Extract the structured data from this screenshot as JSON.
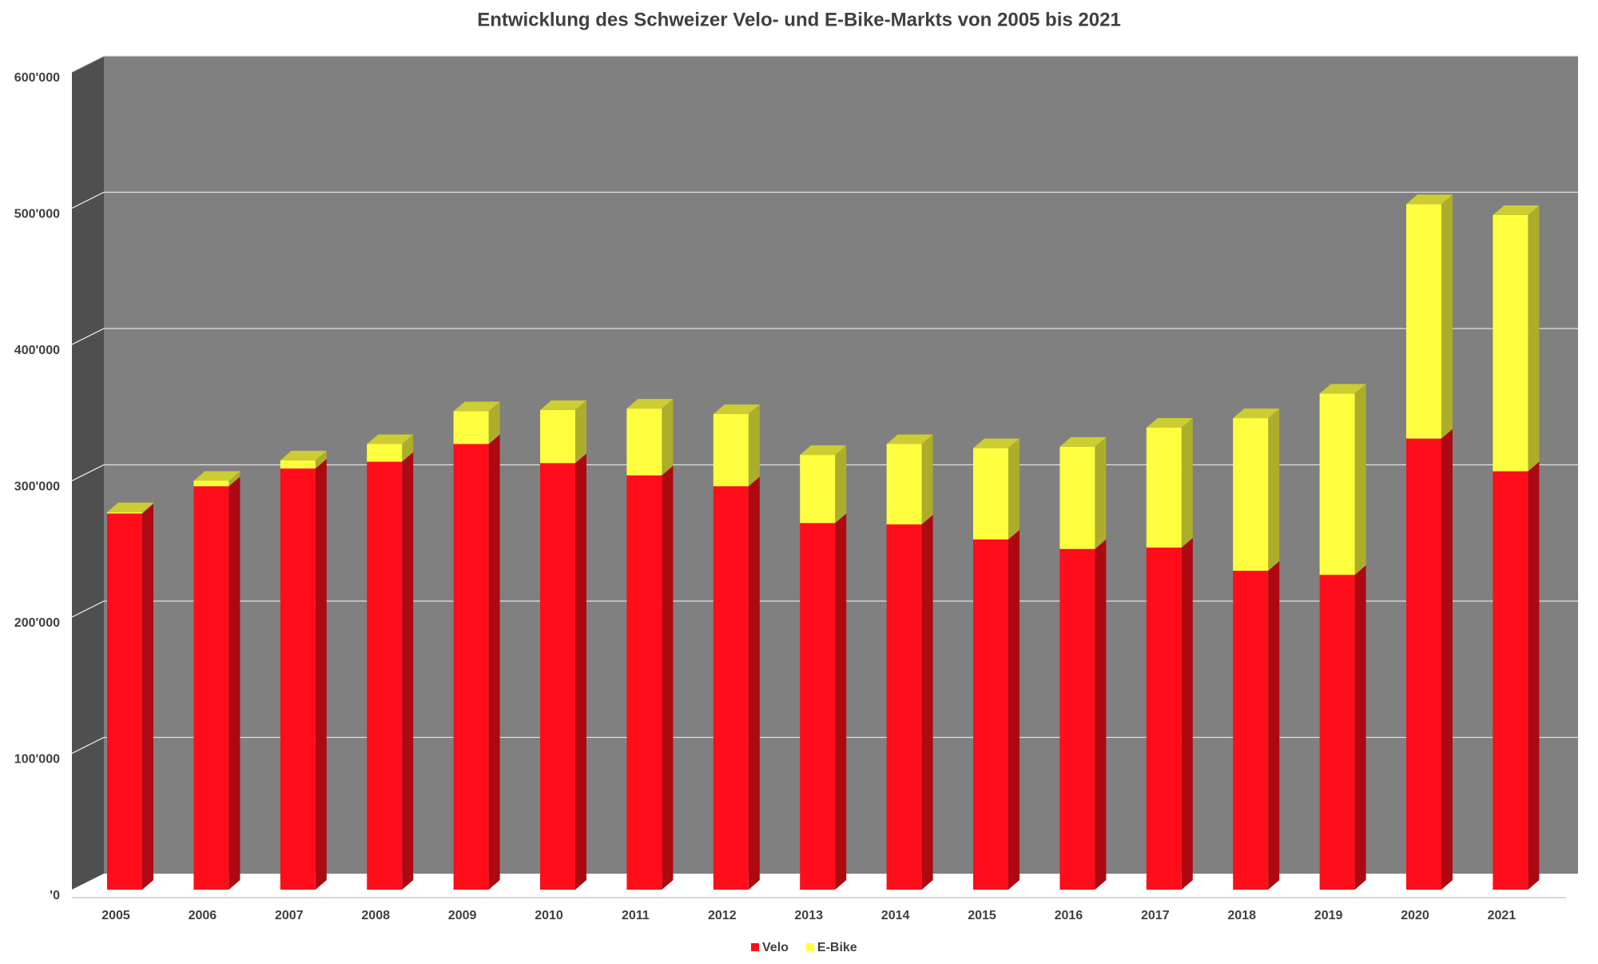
{
  "chart_data": {
    "type": "bar3d_stacked",
    "title": "Entwicklung des Schweizer Velo- und E-Bike-Markts von 2005 bis 2021",
    "categories": [
      "2005",
      "2006",
      "2007",
      "2008",
      "2009",
      "2010",
      "2011",
      "2012",
      "2013",
      "2014",
      "2015",
      "2016",
      "2017",
      "2018",
      "2019",
      "2020",
      "2021"
    ],
    "series": [
      {
        "name": "Velo",
        "color": "#ff0d1a",
        "values": [
          276000,
          296000,
          309000,
          314000,
          327000,
          313000,
          304000,
          296000,
          269000,
          268000,
          257000,
          250000,
          251000,
          234000,
          231000,
          331000,
          307000
        ]
      },
      {
        "name": "E-Bike",
        "color": "#ffff40",
        "values": [
          1000,
          4000,
          6000,
          13000,
          24000,
          39000,
          49000,
          53000,
          50000,
          59000,
          67000,
          75000,
          88000,
          112000,
          133000,
          172000,
          188000
        ]
      }
    ],
    "ylim": [
      0,
      600000
    ],
    "yticks": [
      {
        "value": 0,
        "label": "'0"
      },
      {
        "value": 100000,
        "label": "100'000"
      },
      {
        "value": 200000,
        "label": "200'000"
      },
      {
        "value": 300000,
        "label": "300'000"
      },
      {
        "value": 400000,
        "label": "400'000"
      },
      {
        "value": 500000,
        "label": "500'000"
      },
      {
        "value": 600000,
        "label": "600'000"
      }
    ],
    "grid": true,
    "legend": "bottom"
  }
}
